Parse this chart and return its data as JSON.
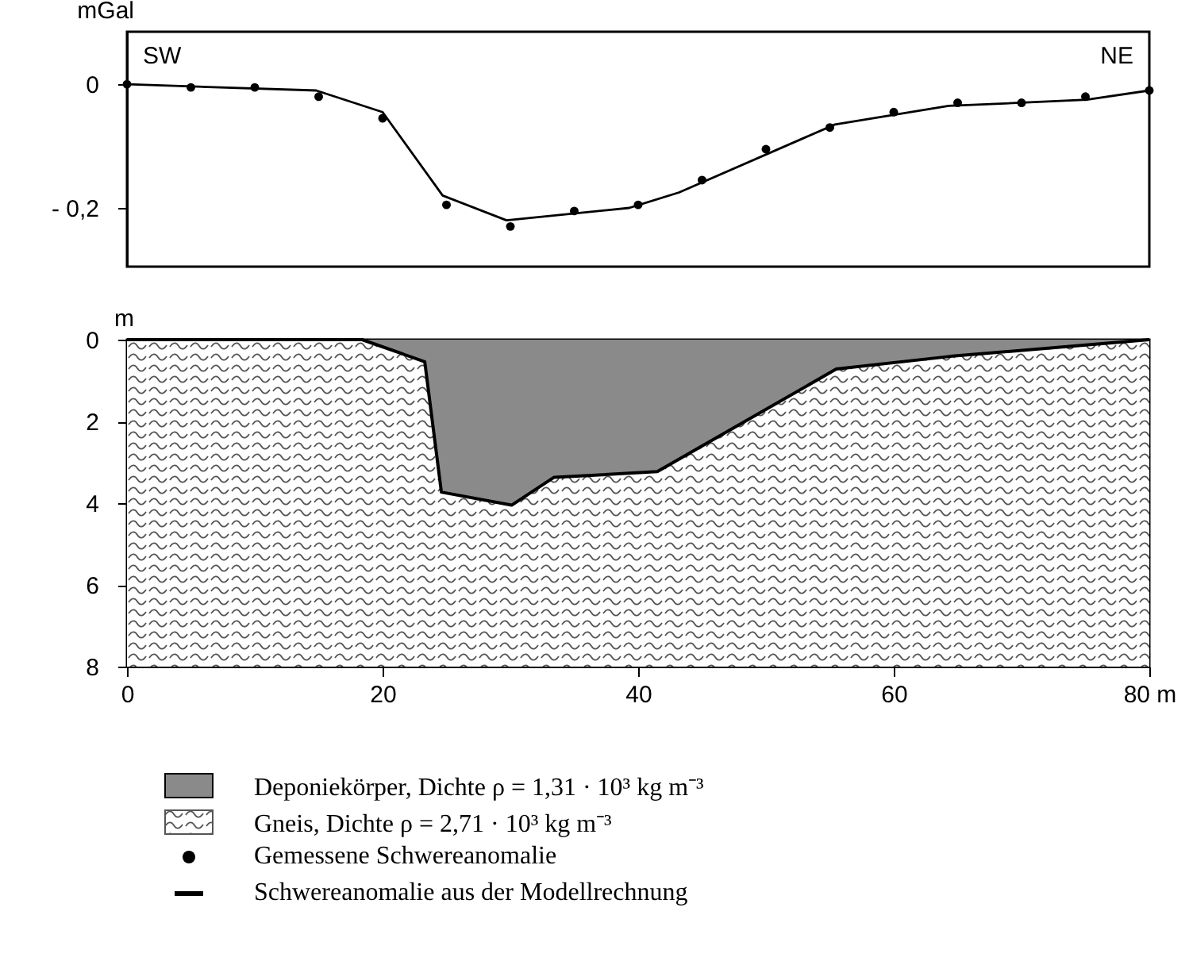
{
  "chart_data": [
    {
      "type": "line",
      "ylabel": "mGal",
      "annotations": [
        "SW",
        "NE"
      ],
      "xlim": [
        0,
        80
      ],
      "ylim": [
        -0.295,
        0.085
      ],
      "yticks": [
        0,
        {
          "value": -0.2,
          "label": "- 0,2"
        }
      ],
      "tick_labels": "y",
      "grid": false,
      "legend": "bottom",
      "series": [
        {
          "name": "Gemessene Schwereanomalie",
          "type": "scatter",
          "marker": "circle",
          "color": "#000000",
          "x": [
            0,
            5,
            10,
            15,
            20,
            25,
            30,
            35,
            40,
            45,
            50,
            55,
            60,
            65,
            70,
            75,
            80
          ],
          "values": [
            0,
            -0.005,
            -0.005,
            -0.02,
            -0.055,
            -0.195,
            -0.23,
            -0.205,
            -0.195,
            -0.155,
            -0.105,
            -0.07,
            -0.045,
            -0.03,
            -0.03,
            -0.02,
            -0.01
          ]
        },
        {
          "name": "Schwereanomalie aus der Modellrechnung",
          "color": "#000000",
          "x": [
            0,
            14.8,
            20,
            24.7,
            29.7,
            39.3,
            43.2,
            55.4,
            64.3,
            75.1,
            80
          ],
          "values": [
            0,
            -0.01,
            -0.045,
            -0.18,
            -0.22,
            -0.2,
            -0.175,
            -0.065,
            -0.035,
            -0.025,
            -0.01
          ]
        }
      ]
    },
    {
      "type": "area",
      "ylabel": "m",
      "xlim": [
        0,
        80
      ],
      "ylim": [
        8,
        0
      ],
      "xticks": [
        0,
        20,
        40,
        60,
        {
          "value": 80,
          "label": "80 m"
        }
      ],
      "yticks": [
        0,
        2,
        4,
        6,
        8
      ],
      "grid": false,
      "legend": "bottom",
      "series": [
        {
          "name": "Deponiekörper, Dichte ρ = 1,31 · 10³ kg m⁻³",
          "color": "#8a8a8a",
          "x": [
            0,
            18.4,
            23.3,
            24.6,
            30.1,
            33.4,
            41.5,
            55.5,
            64.4,
            80
          ],
          "values": [
            0,
            0,
            0.54,
            3.73,
            4.05,
            3.37,
            3.23,
            0.72,
            0.41,
            0
          ]
        }
      ],
      "bands": [
        {
          "axis": "y",
          "from": 0,
          "to": 8,
          "label": "Gneis, Dichte ρ = 2,71 · 10³ kg m⁻³",
          "color": "#555555"
        }
      ]
    }
  ]
}
